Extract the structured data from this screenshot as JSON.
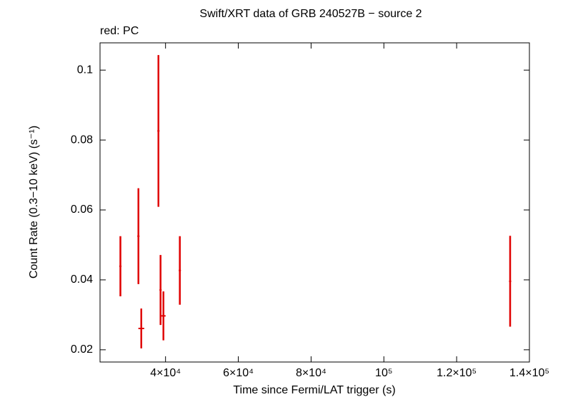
{
  "chart_data": {
    "type": "scatter",
    "title": "Swift/XRT data of GRB 240527B − source 2",
    "subtitle": "red: PC",
    "x_label": "Time since Fermi/LAT trigger (s)",
    "y_label": "Count Rate (0.3−10 keV) (s⁻¹)",
    "xlim": [
      22000,
      140000
    ],
    "ylim": [
      0.0165,
      0.1078
    ],
    "xticks": [
      {
        "value": 40000,
        "label": "4×10⁴"
      },
      {
        "value": 60000,
        "label": "6×10⁴"
      },
      {
        "value": 80000,
        "label": "8×10⁴"
      },
      {
        "value": 100000,
        "label": "10⁵"
      },
      {
        "value": 120000,
        "label": "1.2×10⁵"
      },
      {
        "value": 140000,
        "label": "1.4×10⁵"
      }
    ],
    "yticks": [
      0.02,
      0.04,
      0.06,
      0.08,
      0.1
    ],
    "series": [
      {
        "name": "PC",
        "color": "#e00000",
        "x": [
          27600,
          32550,
          33340,
          38050,
          38630,
          39420,
          43930,
          134700
        ],
        "xerr": [
          300,
          300,
          800,
          300,
          300,
          600,
          300,
          300
        ],
        "values": [
          0.0439,
          0.0525,
          0.0261,
          0.0826,
          0.0371,
          0.0297,
          0.0427,
          0.0396
        ],
        "yerr": [
          0.0086,
          0.0137,
          0.0057,
          0.0217,
          0.01,
          0.007,
          0.0098,
          0.013
        ]
      }
    ]
  }
}
